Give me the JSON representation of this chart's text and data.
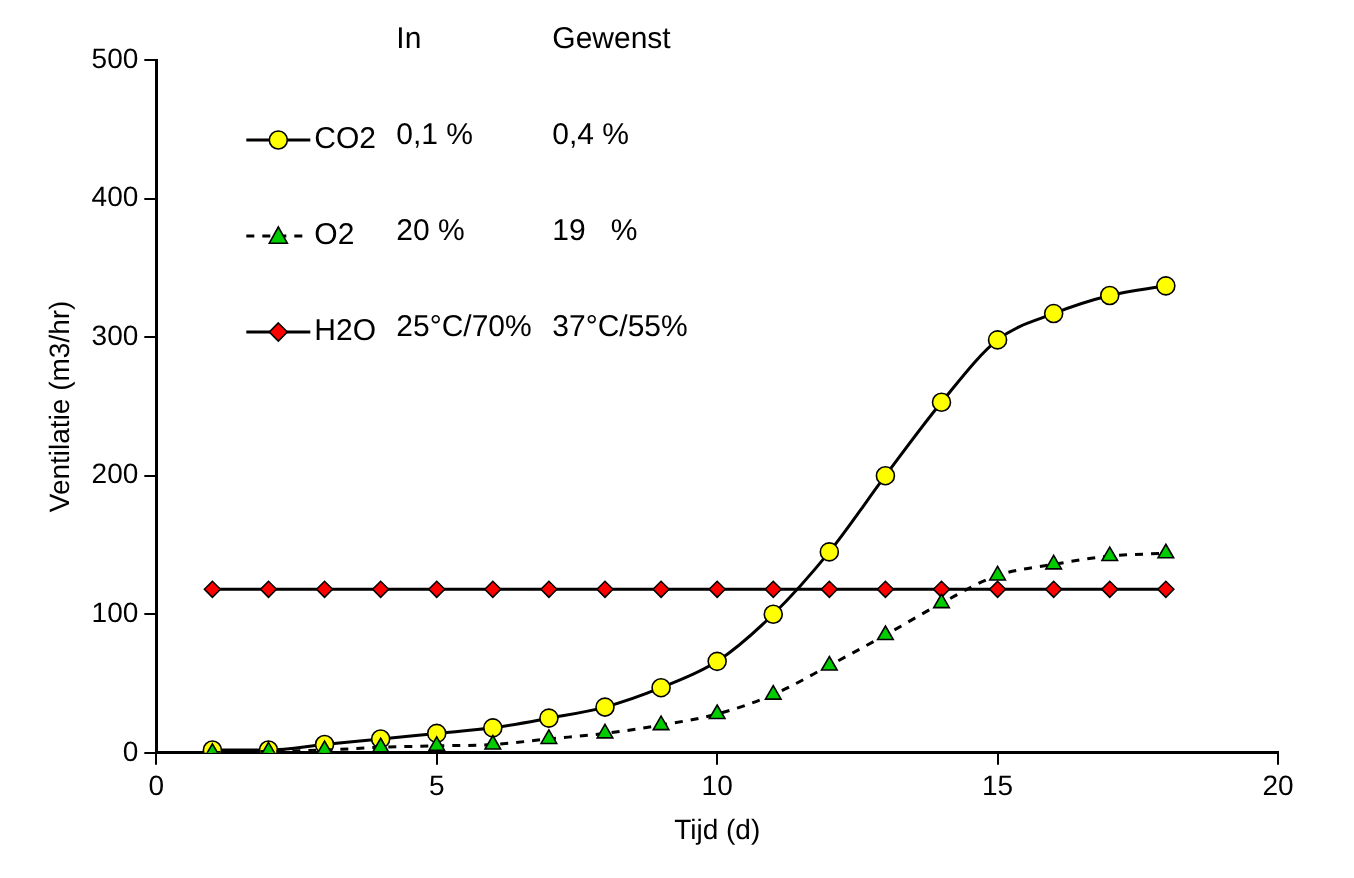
{
  "chart_data": {
    "type": "line",
    "xlabel": "Tijd (d)",
    "ylabel": "Ventilatie (m3/hr)",
    "x": [
      1,
      2,
      3,
      4,
      5,
      6,
      7,
      8,
      9,
      10,
      11,
      12,
      13,
      14,
      15,
      16,
      17,
      18
    ],
    "series": [
      {
        "name": "CO2",
        "color": "#ffff00",
        "marker": "circle",
        "line_style": "solid",
        "values": [
          2,
          2,
          6,
          10,
          14,
          18,
          25,
          33,
          47,
          66,
          100,
          145,
          200,
          253,
          298,
          317,
          330,
          337
        ]
      },
      {
        "name": "O2",
        "color": "#00cc00",
        "marker": "triangle",
        "line_style": "dashed",
        "values": [
          0,
          1,
          2,
          4,
          5,
          6,
          10,
          14,
          20,
          28,
          42,
          63,
          85,
          108,
          128,
          136,
          142,
          144
        ]
      },
      {
        "name": "H2O",
        "color": "#ff0000",
        "marker": "diamond",
        "line_style": "solid",
        "values": [
          118,
          118,
          118,
          118,
          118,
          118,
          118,
          118,
          118,
          118,
          118,
          118,
          118,
          118,
          118,
          118,
          118,
          118
        ]
      }
    ],
    "xlim": [
      0,
      20
    ],
    "xticks": [
      0,
      5,
      10,
      15,
      20
    ],
    "ylim": [
      0,
      500
    ],
    "yticks": [
      0,
      100,
      200,
      300,
      400,
      500
    ],
    "grid": false,
    "legend": "top left",
    "annotations": [
      "In",
      "Gewenst",
      "0,1 %",
      "0,4 %",
      "20 %",
      "19   %",
      "25°C/70%",
      "37°C/55%"
    ]
  }
}
